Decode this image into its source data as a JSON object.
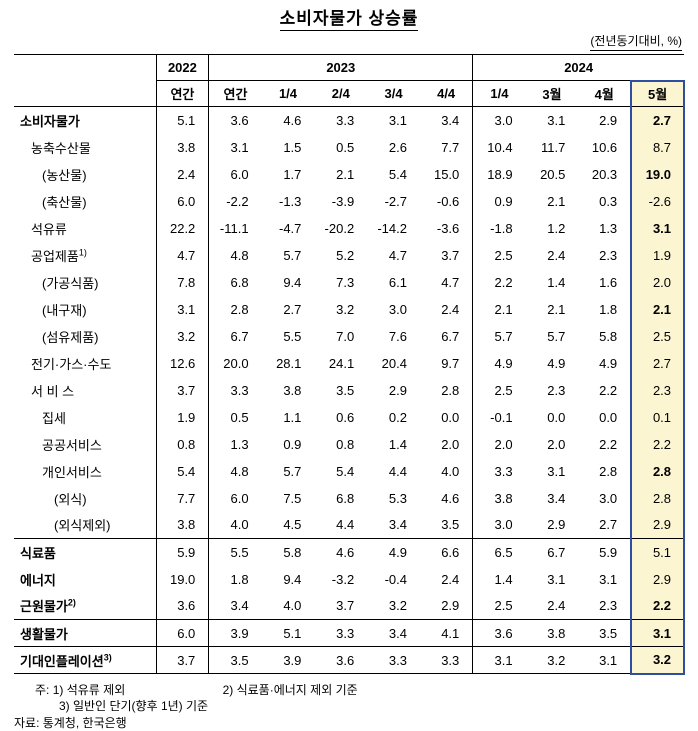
{
  "title": "소비자물가 상승률",
  "unit_note": "(전년동기대비, %)",
  "header": {
    "y2022": "2022",
    "y2023": "2023",
    "y2024": "2024",
    "sub": [
      "연간",
      "연간",
      "1/4",
      "2/4",
      "3/4",
      "4/4",
      "1/4",
      "3월",
      "4월",
      "5월"
    ]
  },
  "rows": [
    {
      "label": "소비자물가",
      "indent": 0,
      "bold": true,
      "section": false,
      "may_bold": true,
      "values": [
        "5.1",
        "3.6",
        "4.6",
        "3.3",
        "3.1",
        "3.4",
        "3.0",
        "3.1",
        "2.9",
        "2.7"
      ]
    },
    {
      "label": "농축수산물",
      "indent": 1,
      "bold": false,
      "section": false,
      "may_bold": false,
      "values": [
        "3.8",
        "3.1",
        "1.5",
        "0.5",
        "2.6",
        "7.7",
        "10.4",
        "11.7",
        "10.6",
        "8.7"
      ]
    },
    {
      "label": "(농산물)",
      "indent": 2,
      "bold": false,
      "section": false,
      "may_bold": true,
      "values": [
        "2.4",
        "6.0",
        "1.7",
        "2.1",
        "5.4",
        "15.0",
        "18.9",
        "20.5",
        "20.3",
        "19.0"
      ]
    },
    {
      "label": "(축산물)",
      "indent": 2,
      "bold": false,
      "section": false,
      "may_bold": false,
      "values": [
        "6.0",
        "-2.2",
        "-1.3",
        "-3.9",
        "-2.7",
        "-0.6",
        "0.9",
        "2.1",
        "0.3",
        "-2.6"
      ]
    },
    {
      "label": "석유류",
      "indent": 1,
      "bold": false,
      "section": false,
      "may_bold": true,
      "values": [
        "22.2",
        "-11.1",
        "-4.7",
        "-20.2",
        "-14.2",
        "-3.6",
        "-1.8",
        "1.2",
        "1.3",
        "3.1"
      ]
    },
    {
      "label": "공업제품",
      "sup": "1)",
      "indent": 1,
      "bold": false,
      "section": false,
      "may_bold": false,
      "values": [
        "4.7",
        "4.8",
        "5.7",
        "5.2",
        "4.7",
        "3.7",
        "2.5",
        "2.4",
        "2.3",
        "1.9"
      ]
    },
    {
      "label": "(가공식품)",
      "indent": 2,
      "bold": false,
      "section": false,
      "may_bold": false,
      "values": [
        "7.8",
        "6.8",
        "9.4",
        "7.3",
        "6.1",
        "4.7",
        "2.2",
        "1.4",
        "1.6",
        "2.0"
      ]
    },
    {
      "label": "(내구재)",
      "indent": 2,
      "bold": false,
      "section": false,
      "may_bold": true,
      "values": [
        "3.1",
        "2.8",
        "2.7",
        "3.2",
        "3.0",
        "2.4",
        "2.1",
        "2.1",
        "1.8",
        "2.1"
      ]
    },
    {
      "label": "(섬유제품)",
      "indent": 2,
      "bold": false,
      "section": false,
      "may_bold": false,
      "values": [
        "3.2",
        "6.7",
        "5.5",
        "7.0",
        "7.6",
        "6.7",
        "5.7",
        "5.7",
        "5.8",
        "2.5"
      ]
    },
    {
      "label": "전기·가스·수도",
      "indent": 1,
      "bold": false,
      "section": false,
      "may_bold": false,
      "values": [
        "12.6",
        "20.0",
        "28.1",
        "24.1",
        "20.4",
        "9.7",
        "4.9",
        "4.9",
        "4.9",
        "2.7"
      ]
    },
    {
      "label": "서 비 스",
      "indent": 1,
      "bold": false,
      "section": false,
      "may_bold": false,
      "values": [
        "3.7",
        "3.3",
        "3.8",
        "3.5",
        "2.9",
        "2.8",
        "2.5",
        "2.3",
        "2.2",
        "2.3"
      ]
    },
    {
      "label": "집세",
      "indent": 2,
      "bold": false,
      "section": false,
      "may_bold": false,
      "values": [
        "1.9",
        "0.5",
        "1.1",
        "0.6",
        "0.2",
        "0.0",
        "-0.1",
        "0.0",
        "0.0",
        "0.1"
      ]
    },
    {
      "label": "공공서비스",
      "indent": 2,
      "bold": false,
      "section": false,
      "may_bold": false,
      "values": [
        "0.8",
        "1.3",
        "0.9",
        "0.8",
        "1.4",
        "2.0",
        "2.0",
        "2.0",
        "2.2",
        "2.2"
      ]
    },
    {
      "label": "개인서비스",
      "indent": 2,
      "bold": false,
      "section": false,
      "may_bold": true,
      "values": [
        "5.4",
        "4.8",
        "5.7",
        "5.4",
        "4.4",
        "4.0",
        "3.3",
        "3.1",
        "2.8",
        "2.8"
      ]
    },
    {
      "label": "(외식)",
      "indent": 3,
      "bold": false,
      "section": false,
      "may_bold": false,
      "values": [
        "7.7",
        "6.0",
        "7.5",
        "6.8",
        "5.3",
        "4.6",
        "3.8",
        "3.4",
        "3.0",
        "2.8"
      ]
    },
    {
      "label": "(외식제외)",
      "indent": 3,
      "bold": false,
      "section": false,
      "may_bold": false,
      "values": [
        "3.8",
        "4.0",
        "4.5",
        "4.4",
        "3.4",
        "3.5",
        "3.0",
        "2.9",
        "2.7",
        "2.9"
      ]
    },
    {
      "label": "식료품",
      "indent": 0,
      "bold": true,
      "section": true,
      "may_bold": false,
      "values": [
        "5.9",
        "5.5",
        "5.8",
        "4.6",
        "4.9",
        "6.6",
        "6.5",
        "6.7",
        "5.9",
        "5.1"
      ]
    },
    {
      "label": "에너지",
      "indent": 0,
      "bold": true,
      "section": false,
      "may_bold": false,
      "values": [
        "19.0",
        "1.8",
        "9.4",
        "-3.2",
        "-0.4",
        "2.4",
        "1.4",
        "3.1",
        "3.1",
        "2.9"
      ]
    },
    {
      "label": "근원물가",
      "sup": "2)",
      "indent": 0,
      "bold": true,
      "section": false,
      "may_bold": true,
      "values": [
        "3.6",
        "3.4",
        "4.0",
        "3.7",
        "3.2",
        "2.9",
        "2.5",
        "2.4",
        "2.3",
        "2.2"
      ]
    },
    {
      "label": "생활물가",
      "indent": 0,
      "bold": true,
      "section": true,
      "may_bold": true,
      "values": [
        "6.0",
        "3.9",
        "5.1",
        "3.3",
        "3.4",
        "4.1",
        "3.6",
        "3.8",
        "3.5",
        "3.1"
      ]
    },
    {
      "label": "기대인플레이션",
      "sup": "3)",
      "indent": 0,
      "bold": true,
      "section": true,
      "may_bold": true,
      "values": [
        "3.7",
        "3.5",
        "3.9",
        "3.6",
        "3.3",
        "3.3",
        "3.1",
        "3.2",
        "3.1",
        "3.2"
      ]
    }
  ],
  "notes": {
    "line1_left": "주: 1) 석유류 제외",
    "line1_right": "2) 식료품·에너지 제외 기준",
    "line2": "3) 일반인 단기(향후 1년) 기준",
    "source": "자료: 통계청, 한국은행"
  },
  "colors": {
    "highlight_bg": "#fcf5d2",
    "highlight_border": "#2e4fa0"
  }
}
